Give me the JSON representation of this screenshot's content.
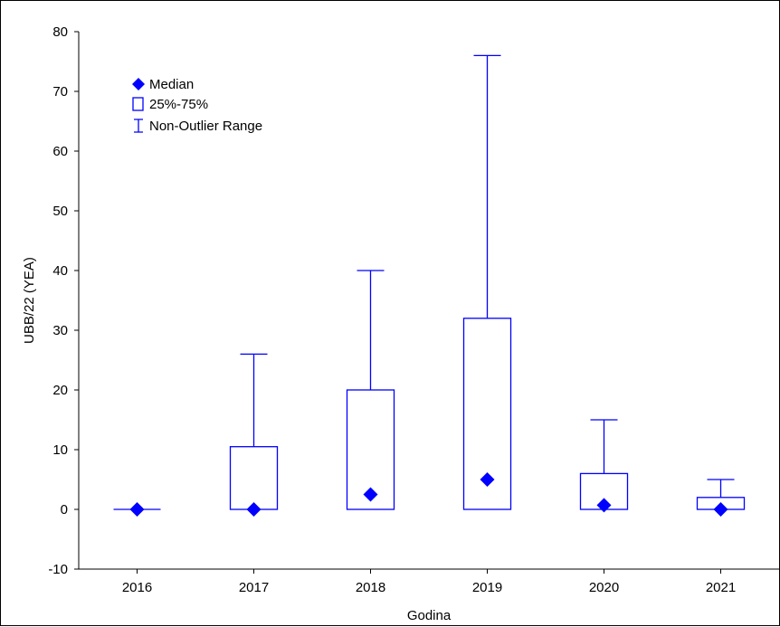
{
  "chart_data": {
    "type": "boxplot",
    "title": "",
    "xlabel": "Godina",
    "ylabel": "UBB/22 (YEA)",
    "ylim": [
      -10,
      80
    ],
    "yticks": [
      -10,
      0,
      10,
      20,
      30,
      40,
      50,
      60,
      70,
      80
    ],
    "grid": false,
    "categories": [
      "2016",
      "2017",
      "2018",
      "2019",
      "2020",
      "2021"
    ],
    "median": [
      0,
      0,
      2.5,
      5,
      0.7,
      0
    ],
    "q1": [
      0,
      0,
      0,
      0,
      0,
      0
    ],
    "q3": [
      0,
      10.5,
      20,
      32,
      6,
      2
    ],
    "whisker_low": [
      0,
      0,
      0,
      0,
      0,
      0
    ],
    "whisker_high": [
      0,
      26,
      40,
      76,
      15,
      5
    ],
    "legend": {
      "position": "top-left",
      "entries": [
        "Median",
        "25%-75%",
        "Non-Outlier Range"
      ]
    },
    "color": "#0000ff"
  }
}
